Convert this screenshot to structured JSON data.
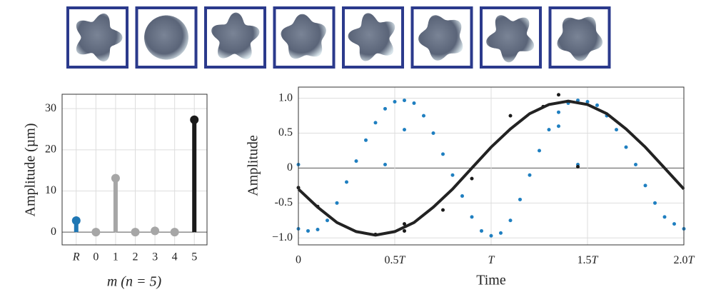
{
  "chart_data": [
    {
      "type": "stem",
      "categories": [
        "R",
        "0",
        "1",
        "2",
        "3",
        "4",
        "5"
      ],
      "values": [
        2.8,
        0,
        13.1,
        0,
        0.3,
        0,
        27.3
      ],
      "colors": [
        "#1f77b4",
        "#a6a6a6",
        "#a6a6a6",
        "#a6a6a6",
        "#a6a6a6",
        "#a6a6a6",
        "#1a1a1a"
      ],
      "xlabel": "m (n = 5)",
      "ylabel": "Amplitude (µm)",
      "ylim": [
        -3.1,
        33.5
      ],
      "yticks": [
        0,
        10,
        20,
        30
      ],
      "grid": true
    },
    {
      "type": "line",
      "xlabel": "Time",
      "ylabel": "Amplitude",
      "xlim": [
        0,
        2
      ],
      "ylim": [
        -1.1,
        1.16
      ],
      "xticks": [
        0,
        {
          "value": 0.5,
          "label": "0.5T"
        },
        {
          "value": 1,
          "label": "T"
        },
        {
          "value": 1.5,
          "label": "1.5T"
        },
        {
          "value": 2,
          "label": "2.0T"
        }
      ],
      "yticks": [
        {
          "value": -1,
          "label": "−1.0"
        },
        -0.5,
        0,
        0.5,
        {
          "value": 1,
          "label": "1.0"
        }
      ],
      "grid": true,
      "series": [
        {
          "style": "markers",
          "color": "#1f7fc0",
          "x": [
            0,
            0.05,
            0.1,
            0.15,
            0.2,
            0.25,
            0.3,
            0.35,
            0.4,
            0.45,
            0.5,
            0.55,
            0.6,
            0.65,
            0.7,
            0.75,
            0.8,
            0.85,
            0.9,
            0.95,
            1.0,
            1.05,
            1.1,
            1.15,
            1.2,
            1.25,
            1.3,
            1.35,
            1.4,
            1.45,
            1.5,
            1.55,
            1.6,
            1.65,
            1.7,
            1.75,
            1.8,
            1.85,
            1.9,
            1.95,
            2.0,
            0,
            0.45,
            0.55,
            1.35,
            1.45
          ],
          "values": [
            -0.87,
            -0.9,
            -0.88,
            -0.75,
            -0.5,
            -0.2,
            0.1,
            0.4,
            0.65,
            0.85,
            0.95,
            0.97,
            0.93,
            0.75,
            0.5,
            0.2,
            -0.1,
            -0.4,
            -0.7,
            -0.9,
            -0.97,
            -0.93,
            -0.75,
            -0.45,
            -0.1,
            0.25,
            0.55,
            0.8,
            0.93,
            0.97,
            0.95,
            0.9,
            0.75,
            0.55,
            0.3,
            0.05,
            -0.25,
            -0.5,
            -0.7,
            -0.8,
            -0.87,
            0.05,
            0.05,
            0.55,
            0.6,
            0.05
          ]
        },
        {
          "style": "markers",
          "color": "#1a1a1a",
          "x": [
            0,
            0.1,
            0.4,
            0.55,
            0.55,
            0.75,
            0.9,
            1.1,
            1.27,
            1.35,
            1.45
          ],
          "values": [
            -0.28,
            -0.55,
            -0.95,
            -0.8,
            -0.9,
            -0.6,
            -0.15,
            0.75,
            0.88,
            1.05,
            0.02
          ]
        },
        {
          "style": "line",
          "color": "#222222",
          "x": [
            0,
            0.1,
            0.2,
            0.3,
            0.4,
            0.5,
            0.6,
            0.7,
            0.8,
            0.9,
            1.0,
            1.1,
            1.2,
            1.3,
            1.4,
            1.5,
            1.6,
            1.7,
            1.8,
            1.9,
            2.0
          ],
          "values": [
            -0.3,
            -0.56,
            -0.78,
            -0.91,
            -0.96,
            -0.91,
            -0.78,
            -0.56,
            -0.3,
            0,
            0.3,
            0.56,
            0.78,
            0.91,
            0.96,
            0.91,
            0.78,
            0.56,
            0.3,
            0,
            -0.3
          ]
        }
      ]
    }
  ]
}
